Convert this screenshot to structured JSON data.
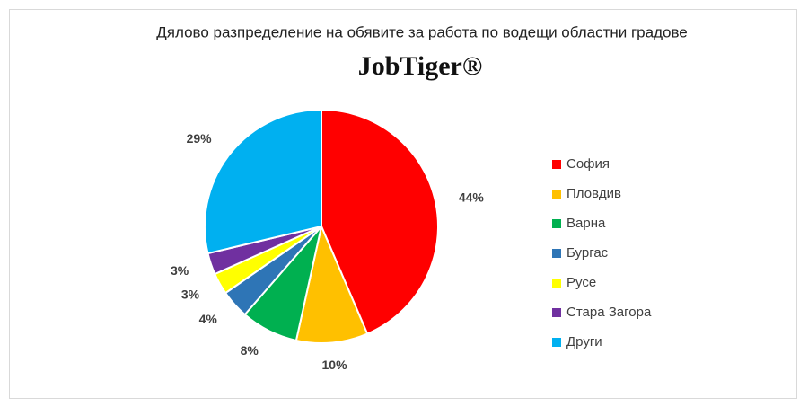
{
  "chart_data": {
    "type": "pie",
    "title": "Дялово разпределение на обявите за работа по водещи областни градове",
    "subtitle": "JobTiger®",
    "categories": [
      "София",
      "Пловдив",
      "Варна",
      "Бургас",
      "Русе",
      "Стара Загора",
      "Други"
    ],
    "values": [
      44,
      10,
      8,
      4,
      3,
      3,
      29
    ],
    "value_labels": [
      "44%",
      "10%",
      "8%",
      "4%",
      "3%",
      "3%",
      "29%"
    ],
    "colors": [
      "#ff0000",
      "#ffc000",
      "#00b050",
      "#2e75b6",
      "#ffff00",
      "#7030a0",
      "#00b0f0"
    ],
    "legend": "right"
  }
}
